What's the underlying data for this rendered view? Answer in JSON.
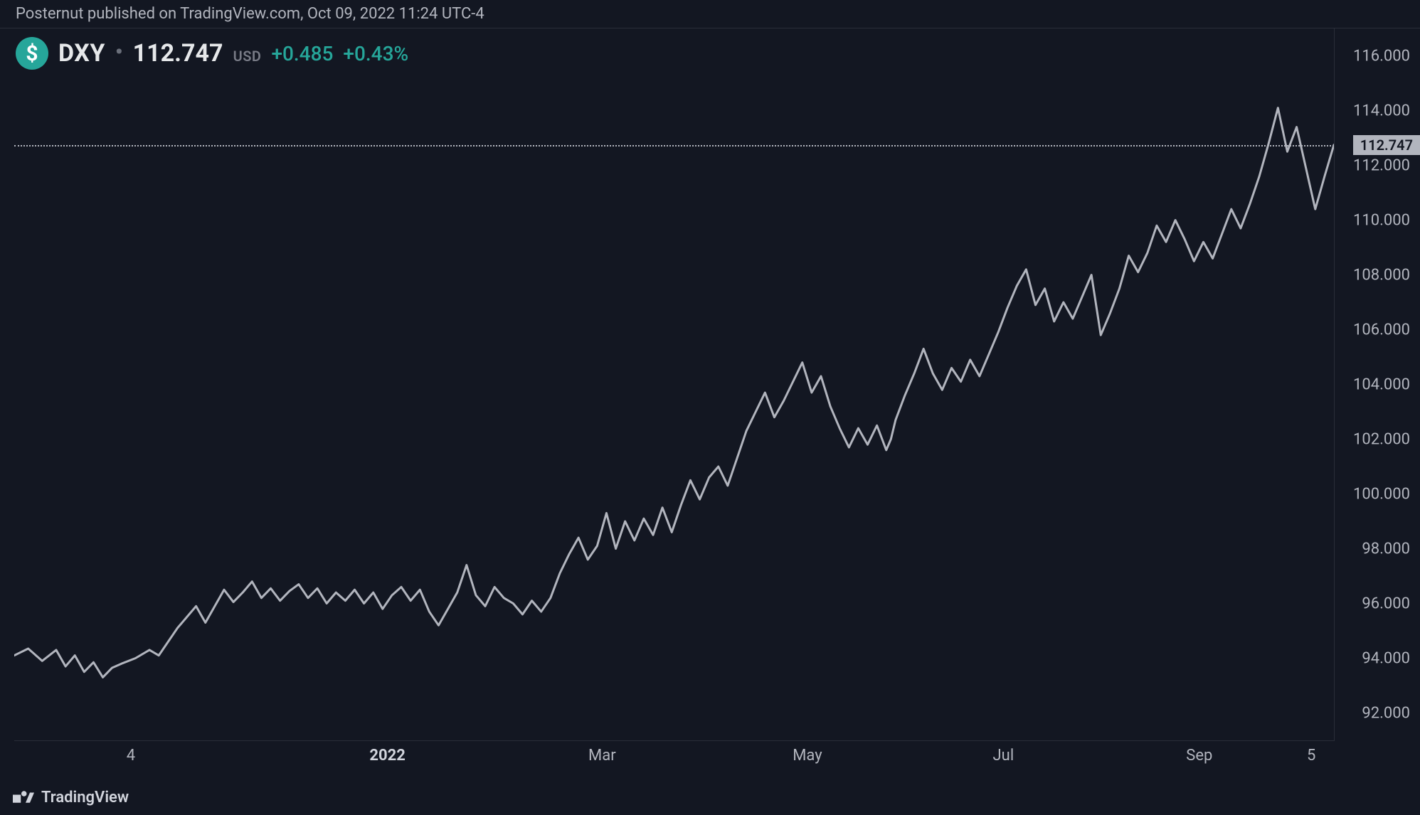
{
  "meta": {
    "publish_line": "Posternut published on TradingView.com, Oct 09, 2022 11:24 UTC-4",
    "brand": "TradingView"
  },
  "legend": {
    "icon_bg": "#26a69a",
    "icon_glyph": "$",
    "symbol": "DXY",
    "price": "112.747",
    "currency": "USD",
    "change_abs": "+0.485",
    "change_pct": "+0.43%",
    "change_color": "#26a69a"
  },
  "chart": {
    "type": "line",
    "background_color": "#131722",
    "grid_color": "#2a2e39",
    "line_color": "#b2b5be",
    "line_width": 3,
    "ylim": [
      91.0,
      117.0
    ],
    "yticks": [
      92.0,
      94.0,
      96.0,
      98.0,
      100.0,
      102.0,
      104.0,
      106.0,
      108.0,
      110.0,
      112.0,
      114.0,
      116.0
    ],
    "xlim": [
      0,
      260
    ],
    "xticks": [
      {
        "x": 25,
        "label": "4",
        "bold": false
      },
      {
        "x": 80,
        "label": "2022",
        "bold": true
      },
      {
        "x": 126,
        "label": "Mar",
        "bold": false
      },
      {
        "x": 170,
        "label": "May",
        "bold": false
      },
      {
        "x": 212,
        "label": "Jul",
        "bold": false
      },
      {
        "x": 254,
        "label": "Sep",
        "bold": false
      },
      {
        "x": 278,
        "label": "5",
        "bold": false
      }
    ],
    "last_price": 112.747,
    "price_label": "112.747",
    "price_line_color": "#b2b5be",
    "series": [
      {
        "x": 0,
        "y": 94.1
      },
      {
        "x": 3,
        "y": 94.35
      },
      {
        "x": 6,
        "y": 93.9
      },
      {
        "x": 9,
        "y": 94.3
      },
      {
        "x": 11,
        "y": 93.7
      },
      {
        "x": 13,
        "y": 94.1
      },
      {
        "x": 15,
        "y": 93.5
      },
      {
        "x": 17,
        "y": 93.85
      },
      {
        "x": 19,
        "y": 93.3
      },
      {
        "x": 21,
        "y": 93.65
      },
      {
        "x": 23,
        "y": 93.8
      },
      {
        "x": 26,
        "y": 94.0
      },
      {
        "x": 29,
        "y": 94.3
      },
      {
        "x": 31,
        "y": 94.1
      },
      {
        "x": 33,
        "y": 94.6
      },
      {
        "x": 35,
        "y": 95.1
      },
      {
        "x": 37,
        "y": 95.5
      },
      {
        "x": 39,
        "y": 95.9
      },
      {
        "x": 41,
        "y": 95.3
      },
      {
        "x": 43,
        "y": 95.9
      },
      {
        "x": 45,
        "y": 96.5
      },
      {
        "x": 47,
        "y": 96.05
      },
      {
        "x": 49,
        "y": 96.4
      },
      {
        "x": 51,
        "y": 96.8
      },
      {
        "x": 53,
        "y": 96.2
      },
      {
        "x": 55,
        "y": 96.55
      },
      {
        "x": 57,
        "y": 96.1
      },
      {
        "x": 59,
        "y": 96.45
      },
      {
        "x": 61,
        "y": 96.7
      },
      {
        "x": 63,
        "y": 96.2
      },
      {
        "x": 65,
        "y": 96.55
      },
      {
        "x": 67,
        "y": 96.0
      },
      {
        "x": 69,
        "y": 96.4
      },
      {
        "x": 71,
        "y": 96.1
      },
      {
        "x": 73,
        "y": 96.5
      },
      {
        "x": 75,
        "y": 96.0
      },
      {
        "x": 77,
        "y": 96.4
      },
      {
        "x": 79,
        "y": 95.8
      },
      {
        "x": 81,
        "y": 96.3
      },
      {
        "x": 83,
        "y": 96.6
      },
      {
        "x": 85,
        "y": 96.1
      },
      {
        "x": 87,
        "y": 96.5
      },
      {
        "x": 89,
        "y": 95.7
      },
      {
        "x": 91,
        "y": 95.2
      },
      {
        "x": 93,
        "y": 95.8
      },
      {
        "x": 95,
        "y": 96.4
      },
      {
        "x": 97,
        "y": 97.4
      },
      {
        "x": 99,
        "y": 96.3
      },
      {
        "x": 101,
        "y": 95.9
      },
      {
        "x": 103,
        "y": 96.6
      },
      {
        "x": 105,
        "y": 96.2
      },
      {
        "x": 107,
        "y": 96.0
      },
      {
        "x": 109,
        "y": 95.6
      },
      {
        "x": 111,
        "y": 96.1
      },
      {
        "x": 113,
        "y": 95.7
      },
      {
        "x": 115,
        "y": 96.2
      },
      {
        "x": 117,
        "y": 97.1
      },
      {
        "x": 119,
        "y": 97.8
      },
      {
        "x": 121,
        "y": 98.4
      },
      {
        "x": 123,
        "y": 97.6
      },
      {
        "x": 125,
        "y": 98.1
      },
      {
        "x": 127,
        "y": 99.3
      },
      {
        "x": 129,
        "y": 98.0
      },
      {
        "x": 131,
        "y": 99.0
      },
      {
        "x": 133,
        "y": 98.3
      },
      {
        "x": 135,
        "y": 99.1
      },
      {
        "x": 137,
        "y": 98.5
      },
      {
        "x": 139,
        "y": 99.5
      },
      {
        "x": 141,
        "y": 98.6
      },
      {
        "x": 143,
        "y": 99.6
      },
      {
        "x": 145,
        "y": 100.5
      },
      {
        "x": 147,
        "y": 99.8
      },
      {
        "x": 149,
        "y": 100.6
      },
      {
        "x": 151,
        "y": 101.0
      },
      {
        "x": 153,
        "y": 100.3
      },
      {
        "x": 155,
        "y": 101.3
      },
      {
        "x": 157,
        "y": 102.3
      },
      {
        "x": 159,
        "y": 103.0
      },
      {
        "x": 161,
        "y": 103.7
      },
      {
        "x": 163,
        "y": 102.8
      },
      {
        "x": 165,
        "y": 103.4
      },
      {
        "x": 167,
        "y": 104.1
      },
      {
        "x": 169,
        "y": 104.8
      },
      {
        "x": 171,
        "y": 103.7
      },
      {
        "x": 173,
        "y": 104.3
      },
      {
        "x": 175,
        "y": 103.2
      },
      {
        "x": 177,
        "y": 102.4
      },
      {
        "x": 179,
        "y": 101.7
      },
      {
        "x": 181,
        "y": 102.4
      },
      {
        "x": 183,
        "y": 101.8
      },
      {
        "x": 185,
        "y": 102.5
      },
      {
        "x": 187,
        "y": 101.6
      },
      {
        "x": 188,
        "y": 102.0
      },
      {
        "x": 189,
        "y": 102.7
      },
      {
        "x": 191,
        "y": 103.6
      },
      {
        "x": 193,
        "y": 104.4
      },
      {
        "x": 195,
        "y": 105.3
      },
      {
        "x": 197,
        "y": 104.4
      },
      {
        "x": 199,
        "y": 103.8
      },
      {
        "x": 201,
        "y": 104.6
      },
      {
        "x": 203,
        "y": 104.1
      },
      {
        "x": 205,
        "y": 104.9
      },
      {
        "x": 207,
        "y": 104.3
      },
      {
        "x": 209,
        "y": 105.1
      },
      {
        "x": 211,
        "y": 105.9
      },
      {
        "x": 213,
        "y": 106.8
      },
      {
        "x": 215,
        "y": 107.6
      },
      {
        "x": 217,
        "y": 108.2
      },
      {
        "x": 219,
        "y": 106.9
      },
      {
        "x": 221,
        "y": 107.5
      },
      {
        "x": 223,
        "y": 106.3
      },
      {
        "x": 225,
        "y": 107.0
      },
      {
        "x": 227,
        "y": 106.4
      },
      {
        "x": 229,
        "y": 107.2
      },
      {
        "x": 231,
        "y": 108.0
      },
      {
        "x": 233,
        "y": 105.8
      },
      {
        "x": 235,
        "y": 106.6
      },
      {
        "x": 237,
        "y": 107.5
      },
      {
        "x": 239,
        "y": 108.7
      },
      {
        "x": 241,
        "y": 108.1
      },
      {
        "x": 243,
        "y": 108.8
      },
      {
        "x": 245,
        "y": 109.8
      },
      {
        "x": 247,
        "y": 109.2
      },
      {
        "x": 249,
        "y": 110.0
      },
      {
        "x": 251,
        "y": 109.3
      },
      {
        "x": 253,
        "y": 108.5
      },
      {
        "x": 255,
        "y": 109.2
      },
      {
        "x": 257,
        "y": 108.6
      },
      {
        "x": 259,
        "y": 109.5
      },
      {
        "x": 261,
        "y": 110.4
      },
      {
        "x": 263,
        "y": 109.7
      },
      {
        "x": 265,
        "y": 110.6
      },
      {
        "x": 267,
        "y": 111.6
      },
      {
        "x": 269,
        "y": 112.8
      },
      {
        "x": 271,
        "y": 114.1
      },
      {
        "x": 273,
        "y": 112.5
      },
      {
        "x": 275,
        "y": 113.4
      },
      {
        "x": 277,
        "y": 111.9
      },
      {
        "x": 279,
        "y": 110.4
      },
      {
        "x": 281,
        "y": 111.6
      },
      {
        "x": 283,
        "y": 112.75
      }
    ]
  }
}
